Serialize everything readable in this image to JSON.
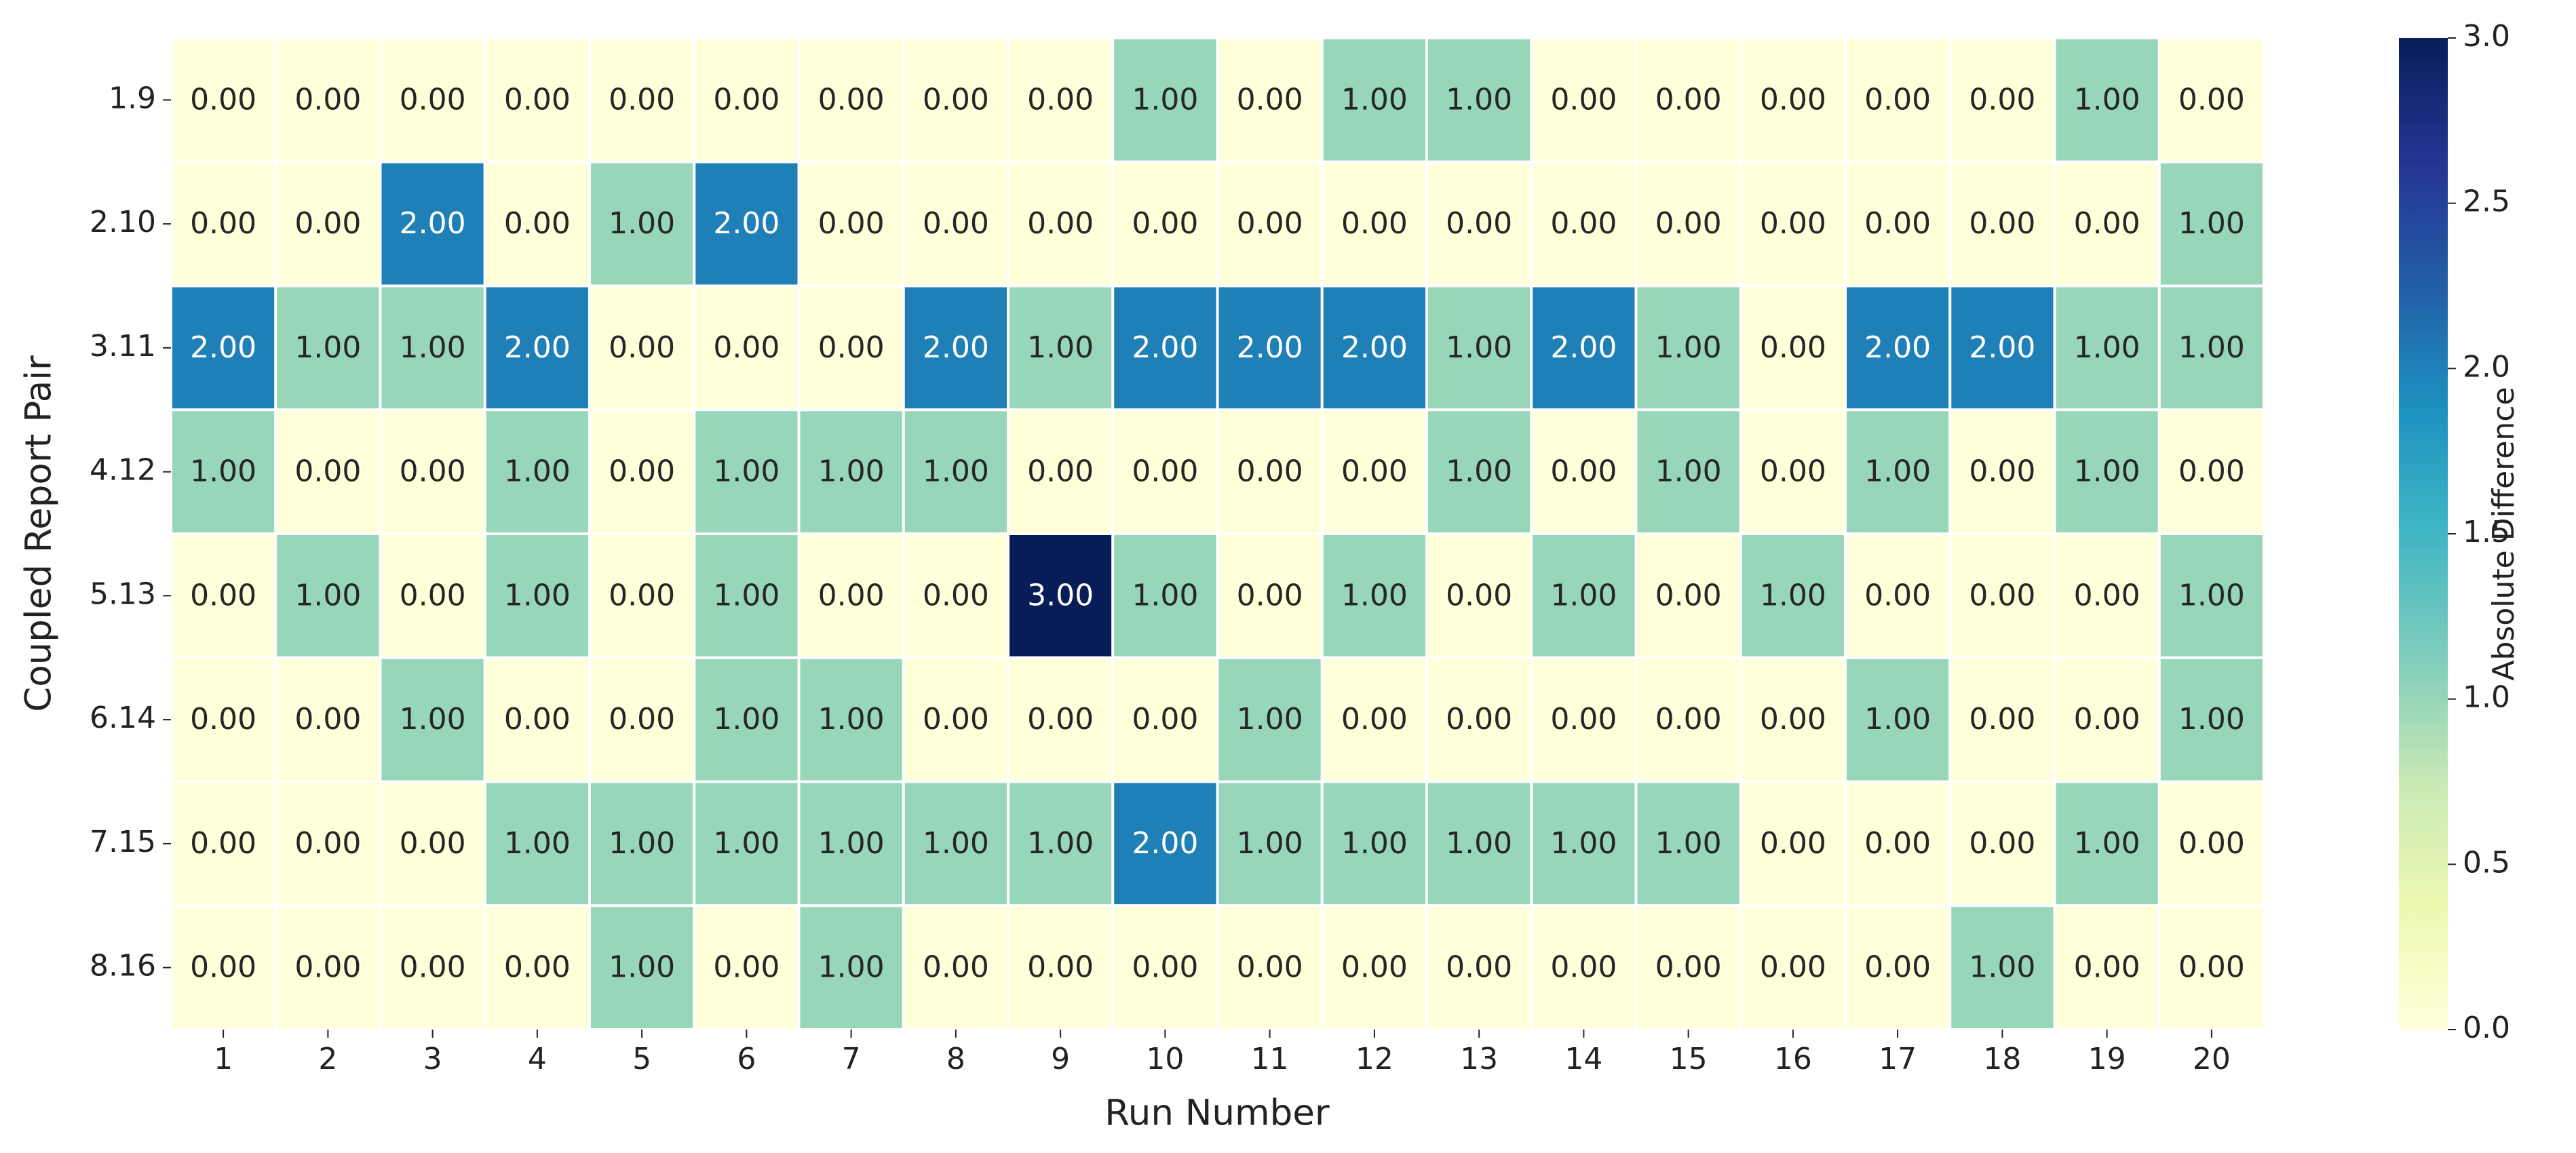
{
  "chart_data": {
    "type": "heatmap",
    "xlabel": "Run Number",
    "ylabel": "Coupled Report Pair",
    "categories": [
      1,
      2,
      3,
      4,
      5,
      6,
      7,
      8,
      9,
      10,
      11,
      12,
      13,
      14,
      15,
      16,
      17,
      18,
      19,
      20
    ],
    "y_categories": [
      "1.9",
      "2.10",
      "3.11",
      "4.12",
      "5.13",
      "6.14",
      "7.15",
      "8.16"
    ],
    "values": [
      [
        0,
        0,
        0,
        0,
        0,
        0,
        0,
        0,
        0,
        1,
        0,
        1,
        1,
        0,
        0,
        0,
        0,
        0,
        1,
        0
      ],
      [
        0,
        0,
        2,
        0,
        1,
        2,
        0,
        0,
        0,
        0,
        0,
        0,
        0,
        0,
        0,
        0,
        0,
        0,
        0,
        1
      ],
      [
        2,
        1,
        1,
        2,
        0,
        0,
        0,
        2,
        1,
        2,
        2,
        2,
        1,
        2,
        1,
        0,
        2,
        2,
        1,
        1
      ],
      [
        1,
        0,
        0,
        1,
        0,
        1,
        1,
        1,
        0,
        0,
        0,
        0,
        1,
        0,
        1,
        0,
        1,
        0,
        1,
        0
      ],
      [
        0,
        1,
        0,
        1,
        0,
        1,
        0,
        0,
        3,
        1,
        0,
        1,
        0,
        1,
        0,
        1,
        0,
        0,
        0,
        1
      ],
      [
        0,
        0,
        1,
        0,
        0,
        1,
        1,
        0,
        0,
        0,
        1,
        0,
        0,
        0,
        0,
        0,
        1,
        0,
        0,
        1
      ],
      [
        0,
        0,
        0,
        1,
        1,
        1,
        1,
        1,
        1,
        2,
        1,
        1,
        1,
        1,
        1,
        0,
        0,
        0,
        1,
        0
      ],
      [
        0,
        0,
        0,
        0,
        1,
        0,
        1,
        0,
        0,
        0,
        0,
        0,
        0,
        0,
        0,
        0,
        0,
        1,
        0,
        0
      ]
    ],
    "value_labels": [
      [
        "0.00",
        "0.00",
        "0.00",
        "0.00",
        "0.00",
        "0.00",
        "0.00",
        "0.00",
        "0.00",
        "1.00",
        "0.00",
        "1.00",
        "1.00",
        "0.00",
        "0.00",
        "0.00",
        "0.00",
        "0.00",
        "1.00",
        "0.00"
      ],
      [
        "0.00",
        "0.00",
        "2.00",
        "0.00",
        "1.00",
        "2.00",
        "0.00",
        "0.00",
        "0.00",
        "0.00",
        "0.00",
        "0.00",
        "0.00",
        "0.00",
        "0.00",
        "0.00",
        "0.00",
        "0.00",
        "0.00",
        "1.00"
      ],
      [
        "2.00",
        "1.00",
        "1.00",
        "2.00",
        "0.00",
        "0.00",
        "0.00",
        "2.00",
        "1.00",
        "2.00",
        "2.00",
        "2.00",
        "1.00",
        "2.00",
        "1.00",
        "0.00",
        "2.00",
        "2.00",
        "1.00",
        "1.00"
      ],
      [
        "1.00",
        "0.00",
        "0.00",
        "1.00",
        "0.00",
        "1.00",
        "1.00",
        "1.00",
        "0.00",
        "0.00",
        "0.00",
        "0.00",
        "1.00",
        "0.00",
        "1.00",
        "0.00",
        "1.00",
        "0.00",
        "1.00",
        "0.00"
      ],
      [
        "0.00",
        "1.00",
        "0.00",
        "1.00",
        "0.00",
        "1.00",
        "0.00",
        "0.00",
        "3.00",
        "1.00",
        "0.00",
        "1.00",
        "0.00",
        "1.00",
        "0.00",
        "1.00",
        "0.00",
        "0.00",
        "0.00",
        "1.00"
      ],
      [
        "0.00",
        "0.00",
        "1.00",
        "0.00",
        "0.00",
        "1.00",
        "1.00",
        "0.00",
        "0.00",
        "0.00",
        "1.00",
        "0.00",
        "0.00",
        "0.00",
        "0.00",
        "0.00",
        "1.00",
        "0.00",
        "0.00",
        "1.00"
      ],
      [
        "0.00",
        "0.00",
        "0.00",
        "1.00",
        "1.00",
        "1.00",
        "1.00",
        "1.00",
        "1.00",
        "2.00",
        "1.00",
        "1.00",
        "1.00",
        "1.00",
        "1.00",
        "0.00",
        "0.00",
        "0.00",
        "1.00",
        "0.00"
      ],
      [
        "0.00",
        "0.00",
        "0.00",
        "0.00",
        "1.00",
        "0.00",
        "1.00",
        "0.00",
        "0.00",
        "0.00",
        "0.00",
        "0.00",
        "0.00",
        "0.00",
        "0.00",
        "0.00",
        "0.00",
        "1.00",
        "0.00",
        "0.00"
      ]
    ],
    "colorbar_label": "Absolute Difference",
    "clim": [
      0,
      3
    ],
    "cticks": [
      {
        "value": 0,
        "label": "0.0"
      },
      0.5,
      {
        "value": 1,
        "label": "1.0"
      },
      1.5,
      {
        "value": 2,
        "label": "2.0"
      },
      2.5,
      {
        "value": 3,
        "label": "3.0"
      }
    ],
    "colorscale": [
      "#ffffd9",
      "#edf8b1",
      "#c7e9b4",
      "#7fcdbb",
      "#41b6c4",
      "#1d91c0",
      "#225ea8",
      "#253494",
      "#081d58"
    ]
  }
}
